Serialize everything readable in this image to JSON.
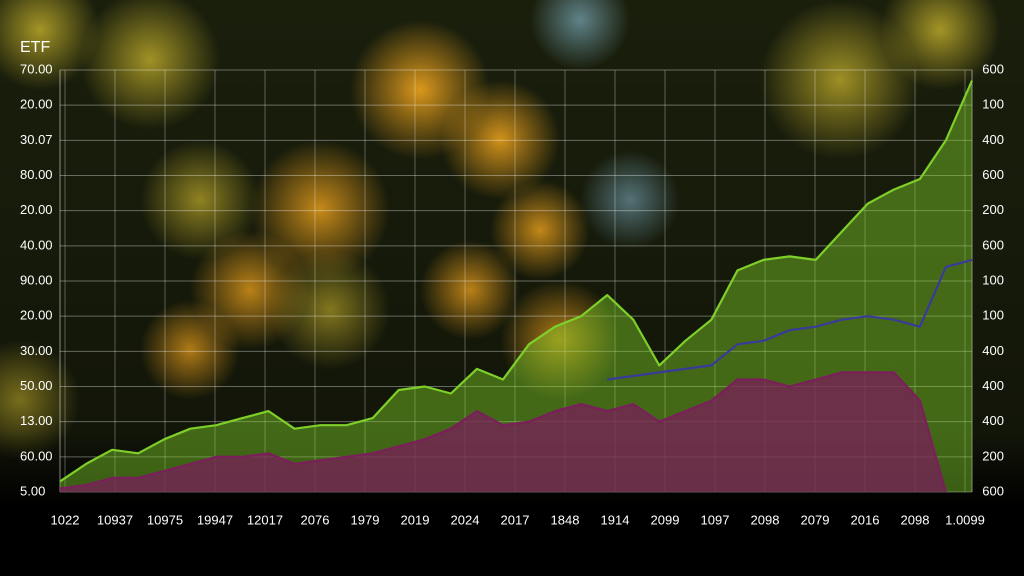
{
  "chart_data": {
    "type": "area",
    "title": "ETF",
    "ylim": [
      0,
      12
    ],
    "yticks": [
      {
        "value": 12,
        "label": "70.00"
      },
      {
        "value": 11,
        "label": "20.00"
      },
      {
        "value": 10,
        "label": "30.07"
      },
      {
        "value": 9,
        "label": "80.00"
      },
      {
        "value": 8,
        "label": "20.00"
      },
      {
        "value": 7,
        "label": "40.00"
      },
      {
        "value": 6,
        "label": "90.00"
      },
      {
        "value": 5,
        "label": "20.00"
      },
      {
        "value": 4,
        "label": "30.00"
      },
      {
        "value": 3,
        "label": "50.00"
      },
      {
        "value": 2,
        "label": "13.00"
      },
      {
        "value": 1,
        "label": "60.00"
      },
      {
        "value": 0,
        "label": "5.00"
      }
    ],
    "y2lim": [
      0,
      12
    ],
    "y2ticks": [
      {
        "value": 12,
        "label": "600"
      },
      {
        "value": 11,
        "label": "100"
      },
      {
        "value": 10,
        "label": "400"
      },
      {
        "value": 9,
        "label": "600"
      },
      {
        "value": 8,
        "label": "200"
      },
      {
        "value": 7,
        "label": "600"
      },
      {
        "value": 6,
        "label": "100"
      },
      {
        "value": 5,
        "label": "100"
      },
      {
        "value": 4,
        "label": "400"
      },
      {
        "value": 3,
        "label": "400"
      },
      {
        "value": 2,
        "label": "400"
      },
      {
        "value": 1,
        "label": "200"
      },
      {
        "value": 0,
        "label": "600"
      }
    ],
    "x_labels": [
      "1022",
      "10937",
      "10975",
      "19947",
      "12017",
      "2076",
      "1979",
      "2019",
      "2024",
      "2017",
      "1848",
      "1914",
      "2099",
      "1097",
      "2098",
      "2079",
      "2016",
      "2098",
      "1.0099"
    ],
    "grid": true,
    "series": [
      {
        "name": null,
        "color": "#7fcf2a",
        "values": [
          0.3,
          0.8,
          1.2,
          1.1,
          1.5,
          1.8,
          1.9,
          2.1,
          2.3,
          1.8,
          1.9,
          1.9,
          2.1,
          2.9,
          3.0,
          2.8,
          3.5,
          3.2,
          4.2,
          4.7,
          5.0,
          5.6,
          4.9,
          3.6,
          4.3,
          4.9,
          6.3,
          6.6,
          6.7,
          6.6,
          7.4,
          8.2,
          8.6,
          8.9,
          10.0,
          11.7
        ]
      },
      {
        "name": null,
        "color": "#3a3a9a",
        "values": [
          null,
          null,
          null,
          null,
          null,
          null,
          null,
          null,
          null,
          null,
          null,
          null,
          null,
          null,
          null,
          null,
          null,
          null,
          null,
          null,
          null,
          3.2,
          3.3,
          3.4,
          3.5,
          3.6,
          4.2,
          4.3,
          4.6,
          4.7,
          4.9,
          5.0,
          4.9,
          4.7,
          6.4,
          6.6
        ]
      },
      {
        "name": null,
        "color": "#7a1f5a",
        "values": [
          0.1,
          0.2,
          0.4,
          0.4,
          0.6,
          0.8,
          1.0,
          1.0,
          1.1,
          0.8,
          0.9,
          1.0,
          1.1,
          1.3,
          1.5,
          1.8,
          2.3,
          1.9,
          2.0,
          2.3,
          2.5,
          2.3,
          2.5,
          2.0,
          2.3,
          2.6,
          3.2,
          3.2,
          3.0,
          3.2,
          3.4,
          3.4,
          3.4,
          2.6,
          0,
          null
        ]
      }
    ]
  }
}
